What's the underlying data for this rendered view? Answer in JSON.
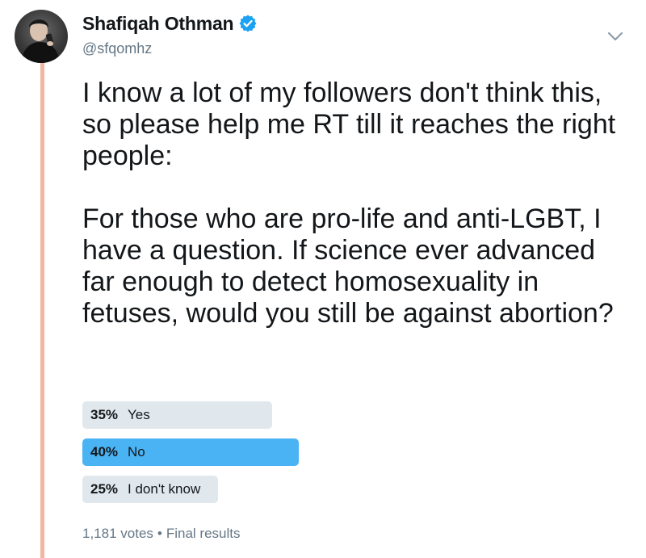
{
  "user": {
    "display_name": "Shafiqah Othman",
    "handle": "@sfqomhz",
    "verified": true,
    "verified_color": "#1da1f2"
  },
  "tweet": {
    "paragraphs": [
      "I know a lot of my followers don't think this, so please help me RT till it reaches the right people:",
      "For those who are pro-life and anti-LGBT, I have a question. If science ever advanced far enough to detect homosexuality in fetuses, would you still be against abortion?"
    ]
  },
  "poll": {
    "options": [
      {
        "percent_label": "35%",
        "label": "Yes",
        "percent": 35,
        "winner": false
      },
      {
        "percent_label": "40%",
        "label": "No",
        "percent": 40,
        "winner": true
      },
      {
        "percent_label": "25%",
        "label": "I don't know",
        "percent": 25,
        "winner": false
      }
    ],
    "votes": "1,181 votes",
    "separator": "•",
    "status": "Final results"
  },
  "colors": {
    "thread_line": "#f5b6a0",
    "winner_bar": "#4ab3f4",
    "bar": "#e1e8ed",
    "secondary_text": "#657786"
  },
  "icons": {
    "menu": "chevron-down-icon",
    "verified": "verified-badge-icon"
  }
}
